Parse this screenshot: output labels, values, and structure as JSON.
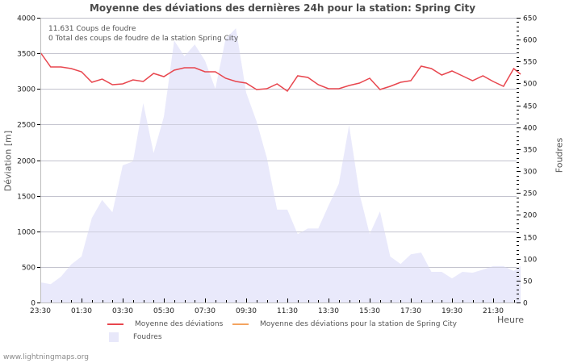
{
  "title": "Moyenne des déviations des dernières 24h pour la station: Spring City",
  "annotations": {
    "line1": "11.631  Coups de foudre",
    "line2": "0 Total des coups de foudre de la station Spring City"
  },
  "axes": {
    "left_label": "Déviation  [m]",
    "right_label": "Foudres",
    "x_label": "Heure",
    "left_ticks": [
      "0",
      "500",
      "1000",
      "1500",
      "2000",
      "2500",
      "3000",
      "3500",
      "4000"
    ],
    "right_ticks": [
      "0",
      "50",
      "100",
      "150",
      "200",
      "250",
      "300",
      "350",
      "400",
      "450",
      "500",
      "550",
      "600",
      "650"
    ],
    "x_ticks": [
      "23:30",
      "01:30",
      "03:30",
      "05:30",
      "07:30",
      "09:30",
      "11:30",
      "13:30",
      "15:30",
      "17:30",
      "19:30",
      "21:30"
    ]
  },
  "legend": {
    "items": [
      {
        "label": "Moyenne des déviations",
        "color": "#e8464e",
        "type": "line"
      },
      {
        "label": "Moyenne des déviations pour la station de Spring City",
        "color": "#f4a460",
        "type": "line"
      },
      {
        "label": "Foudres",
        "color": "#e8e8fa",
        "type": "area"
      }
    ]
  },
  "footer": "www.lightningmaps.org",
  "colors": {
    "deviation_line": "#e8464e",
    "station_line": "#f4a460",
    "foudres_fill": "#e9e9fb",
    "grid": "#c8c8c8",
    "axis": "#bdbdbd"
  },
  "chart_data": {
    "type": "line",
    "title": "Moyenne des déviations des dernières 24h pour la station: Spring City",
    "xlabel": "Heure",
    "ylabel": "Déviation  [m]",
    "y2label": "Foudres",
    "ylim": [
      0,
      4000
    ],
    "y2lim": [
      0,
      650
    ],
    "grid": true,
    "legend_position": "bottom",
    "x": [
      "23:30",
      "00:00",
      "00:30",
      "01:00",
      "01:30",
      "02:00",
      "02:30",
      "03:00",
      "03:30",
      "04:00",
      "04:30",
      "05:00",
      "05:30",
      "06:00",
      "06:30",
      "07:00",
      "07:30",
      "08:00",
      "08:30",
      "09:00",
      "09:30",
      "10:00",
      "10:30",
      "11:00",
      "11:30",
      "12:00",
      "12:30",
      "13:00",
      "13:30",
      "14:00",
      "14:30",
      "15:00",
      "15:30",
      "16:00",
      "16:30",
      "17:00",
      "17:30",
      "18:00",
      "18:30",
      "19:00",
      "19:30",
      "20:00",
      "20:30",
      "21:00",
      "21:30",
      "22:00",
      "22:30",
      "22:45"
    ],
    "series": [
      {
        "name": "Moyenne des déviations",
        "axis": "left",
        "type": "line",
        "values": [
          3513,
          3309,
          3309,
          3286,
          3241,
          3094,
          3139,
          3060,
          3071,
          3128,
          3105,
          3218,
          3173,
          3263,
          3297,
          3297,
          3241,
          3241,
          3150,
          3105,
          3082,
          2991,
          3003,
          3071,
          2969,
          3184,
          3161,
          3060,
          3003,
          3003,
          3048,
          3082,
          3150,
          2991,
          3037,
          3094,
          3116,
          3320,
          3286,
          3195,
          3252,
          3184,
          3116,
          3184,
          3105,
          3037,
          3286,
          3207
        ]
      },
      {
        "name": "Moyenne des déviations pour la station de Spring City",
        "axis": "left",
        "type": "line",
        "values": []
      },
      {
        "name": "Foudres",
        "axis": "right",
        "type": "area",
        "values": [
          46,
          42,
          59,
          87,
          105,
          193,
          234,
          206,
          313,
          322,
          455,
          341,
          424,
          598,
          562,
          589,
          552,
          488,
          602,
          626,
          479,
          414,
          331,
          212,
          212,
          156,
          169,
          169,
          221,
          271,
          405,
          249,
          156,
          208,
          105,
          88,
          110,
          114,
          70,
          70,
          55,
          70,
          68,
          75,
          83,
          83,
          72,
          83
        ]
      }
    ],
    "annotations": [
      "11.631  Coups de foudre",
      "0 Total des coups de foudre de la station Spring City"
    ]
  }
}
